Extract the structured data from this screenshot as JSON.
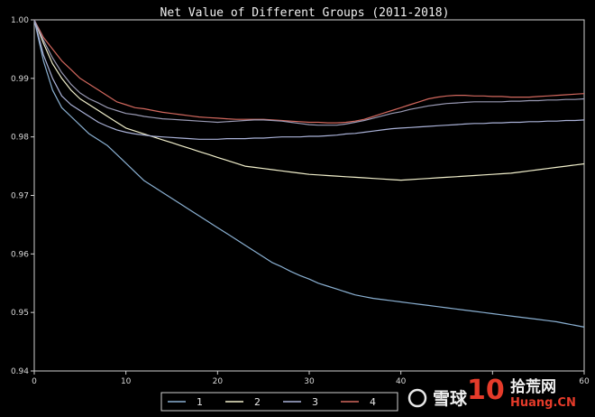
{
  "chart_data": {
    "type": "line",
    "title": "Net Value of Different Groups (2011-2018)",
    "xlabel": "",
    "ylabel": "",
    "xlim": [
      0,
      60
    ],
    "ylim": [
      0.94,
      1.0
    ],
    "xticks": [
      0,
      10,
      20,
      30,
      40,
      50,
      60
    ],
    "xtick_labels": [
      "0",
      "10",
      "20",
      "30",
      "40",
      "",
      "60"
    ],
    "yticks": [
      0.94,
      0.95,
      0.96,
      0.97,
      0.98,
      0.99,
      1.0
    ],
    "ytick_labels": [
      "0.94",
      "0.95",
      "0.96",
      "0.97",
      "0.98",
      "0.99",
      "1.00"
    ],
    "grid": false,
    "legend_position": "bottom-center",
    "x": [
      0,
      1,
      2,
      3,
      4,
      5,
      6,
      7,
      8,
      9,
      10,
      11,
      12,
      13,
      14,
      15,
      16,
      17,
      18,
      19,
      20,
      21,
      22,
      23,
      24,
      25,
      26,
      27,
      28,
      29,
      30,
      31,
      32,
      33,
      34,
      35,
      36,
      37,
      38,
      39,
      40,
      41,
      42,
      43,
      44,
      45,
      46,
      47,
      48,
      49,
      50,
      51,
      52,
      53,
      54,
      55,
      56,
      57,
      58,
      59,
      60
    ],
    "series": [
      {
        "name": "1",
        "color": "#8ab0d2",
        "values": [
          1.0,
          0.993,
          0.988,
          0.985,
          0.9835,
          0.982,
          0.9805,
          0.9795,
          0.9785,
          0.977,
          0.9755,
          0.974,
          0.9725,
          0.9715,
          0.9705,
          0.9695,
          0.9685,
          0.9675,
          0.9665,
          0.9655,
          0.9645,
          0.9635,
          0.9625,
          0.9615,
          0.9605,
          0.9595,
          0.9585,
          0.9578,
          0.957,
          0.9563,
          0.9557,
          0.955,
          0.9545,
          0.954,
          0.9535,
          0.953,
          0.9527,
          0.9524,
          0.9522,
          0.952,
          0.9518,
          0.9516,
          0.9514,
          0.9512,
          0.951,
          0.9508,
          0.9506,
          0.9504,
          0.9502,
          0.95,
          0.9498,
          0.9496,
          0.9494,
          0.9492,
          0.949,
          0.9488,
          0.9486,
          0.9484,
          0.9481,
          0.9478,
          0.9475
        ]
      },
      {
        "name": "2",
        "color": "#f2f0cc",
        "values": [
          1.0,
          0.996,
          0.9925,
          0.99,
          0.988,
          0.9865,
          0.9855,
          0.9845,
          0.9835,
          0.9825,
          0.9815,
          0.981,
          0.9805,
          0.98,
          0.9795,
          0.979,
          0.9785,
          0.978,
          0.9775,
          0.977,
          0.9765,
          0.976,
          0.9755,
          0.975,
          0.9748,
          0.9746,
          0.9744,
          0.9742,
          0.974,
          0.9738,
          0.9736,
          0.9735,
          0.9734,
          0.9733,
          0.9732,
          0.9731,
          0.973,
          0.9729,
          0.9728,
          0.9727,
          0.9726,
          0.9727,
          0.9728,
          0.9729,
          0.973,
          0.9731,
          0.9732,
          0.9733,
          0.9734,
          0.9735,
          0.9736,
          0.9737,
          0.9738,
          0.974,
          0.9742,
          0.9744,
          0.9746,
          0.9748,
          0.975,
          0.9752,
          0.9754
        ]
      },
      {
        "name": "3",
        "color": "#aab2d8",
        "values": [
          1.0,
          0.994,
          0.99,
          0.987,
          0.9855,
          0.9845,
          0.9835,
          0.9825,
          0.9818,
          0.9812,
          0.9808,
          0.9805,
          0.9803,
          0.9801,
          0.98,
          0.9799,
          0.9798,
          0.9797,
          0.9796,
          0.9796,
          0.9796,
          0.9797,
          0.9797,
          0.9797,
          0.9798,
          0.9798,
          0.9799,
          0.98,
          0.98,
          0.98,
          0.9801,
          0.9801,
          0.9802,
          0.9803,
          0.9805,
          0.9806,
          0.9808,
          0.981,
          0.9812,
          0.9814,
          0.9815,
          0.9816,
          0.9817,
          0.9818,
          0.9819,
          0.982,
          0.9821,
          0.9822,
          0.9823,
          0.9823,
          0.9824,
          0.9824,
          0.9825,
          0.9825,
          0.9826,
          0.9826,
          0.9827,
          0.9827,
          0.9828,
          0.9828,
          0.9829
        ]
      },
      {
        "name": "4",
        "color": "#d2685e",
        "values": [
          1.0,
          0.997,
          0.995,
          0.993,
          0.9915,
          0.99,
          0.989,
          0.988,
          0.987,
          0.986,
          0.9855,
          0.985,
          0.9848,
          0.9845,
          0.9842,
          0.984,
          0.9838,
          0.9836,
          0.9834,
          0.9833,
          0.9832,
          0.9831,
          0.983,
          0.983,
          0.983,
          0.983,
          0.9829,
          0.9828,
          0.9827,
          0.9826,
          0.9825,
          0.9825,
          0.9824,
          0.9824,
          0.9825,
          0.9827,
          0.983,
          0.9835,
          0.984,
          0.9845,
          0.985,
          0.9855,
          0.986,
          0.9865,
          0.9868,
          0.987,
          0.9871,
          0.9871,
          0.987,
          0.987,
          0.9869,
          0.9869,
          0.9868,
          0.9868,
          0.9868,
          0.9869,
          0.987,
          0.9871,
          0.9872,
          0.9873,
          0.9874
        ]
      },
      {
        "name": "",
        "color": "#9a9ab4",
        "values": [
          1.0,
          0.9965,
          0.9935,
          0.991,
          0.989,
          0.9875,
          0.9865,
          0.9858,
          0.985,
          0.9845,
          0.984,
          0.9838,
          0.9835,
          0.9833,
          0.9831,
          0.983,
          0.9829,
          0.9828,
          0.9827,
          0.9826,
          0.9825,
          0.9826,
          0.9827,
          0.9828,
          0.9829,
          0.9829,
          0.9828,
          0.9827,
          0.9825,
          0.9823,
          0.9821,
          0.982,
          0.982,
          0.982,
          0.9822,
          0.9825,
          0.9828,
          0.9832,
          0.9836,
          0.984,
          0.9843,
          0.9847,
          0.985,
          0.9853,
          0.9855,
          0.9857,
          0.9858,
          0.9859,
          0.986,
          0.986,
          0.986,
          0.986,
          0.9861,
          0.9861,
          0.9862,
          0.9862,
          0.9863,
          0.9863,
          0.9864,
          0.9864,
          0.9865
        ]
      }
    ]
  },
  "watermark": {
    "logo_text": "雪球",
    "brand_number": "10",
    "brand_cn": "拾荒网",
    "brand_url": "Huang.CN"
  }
}
